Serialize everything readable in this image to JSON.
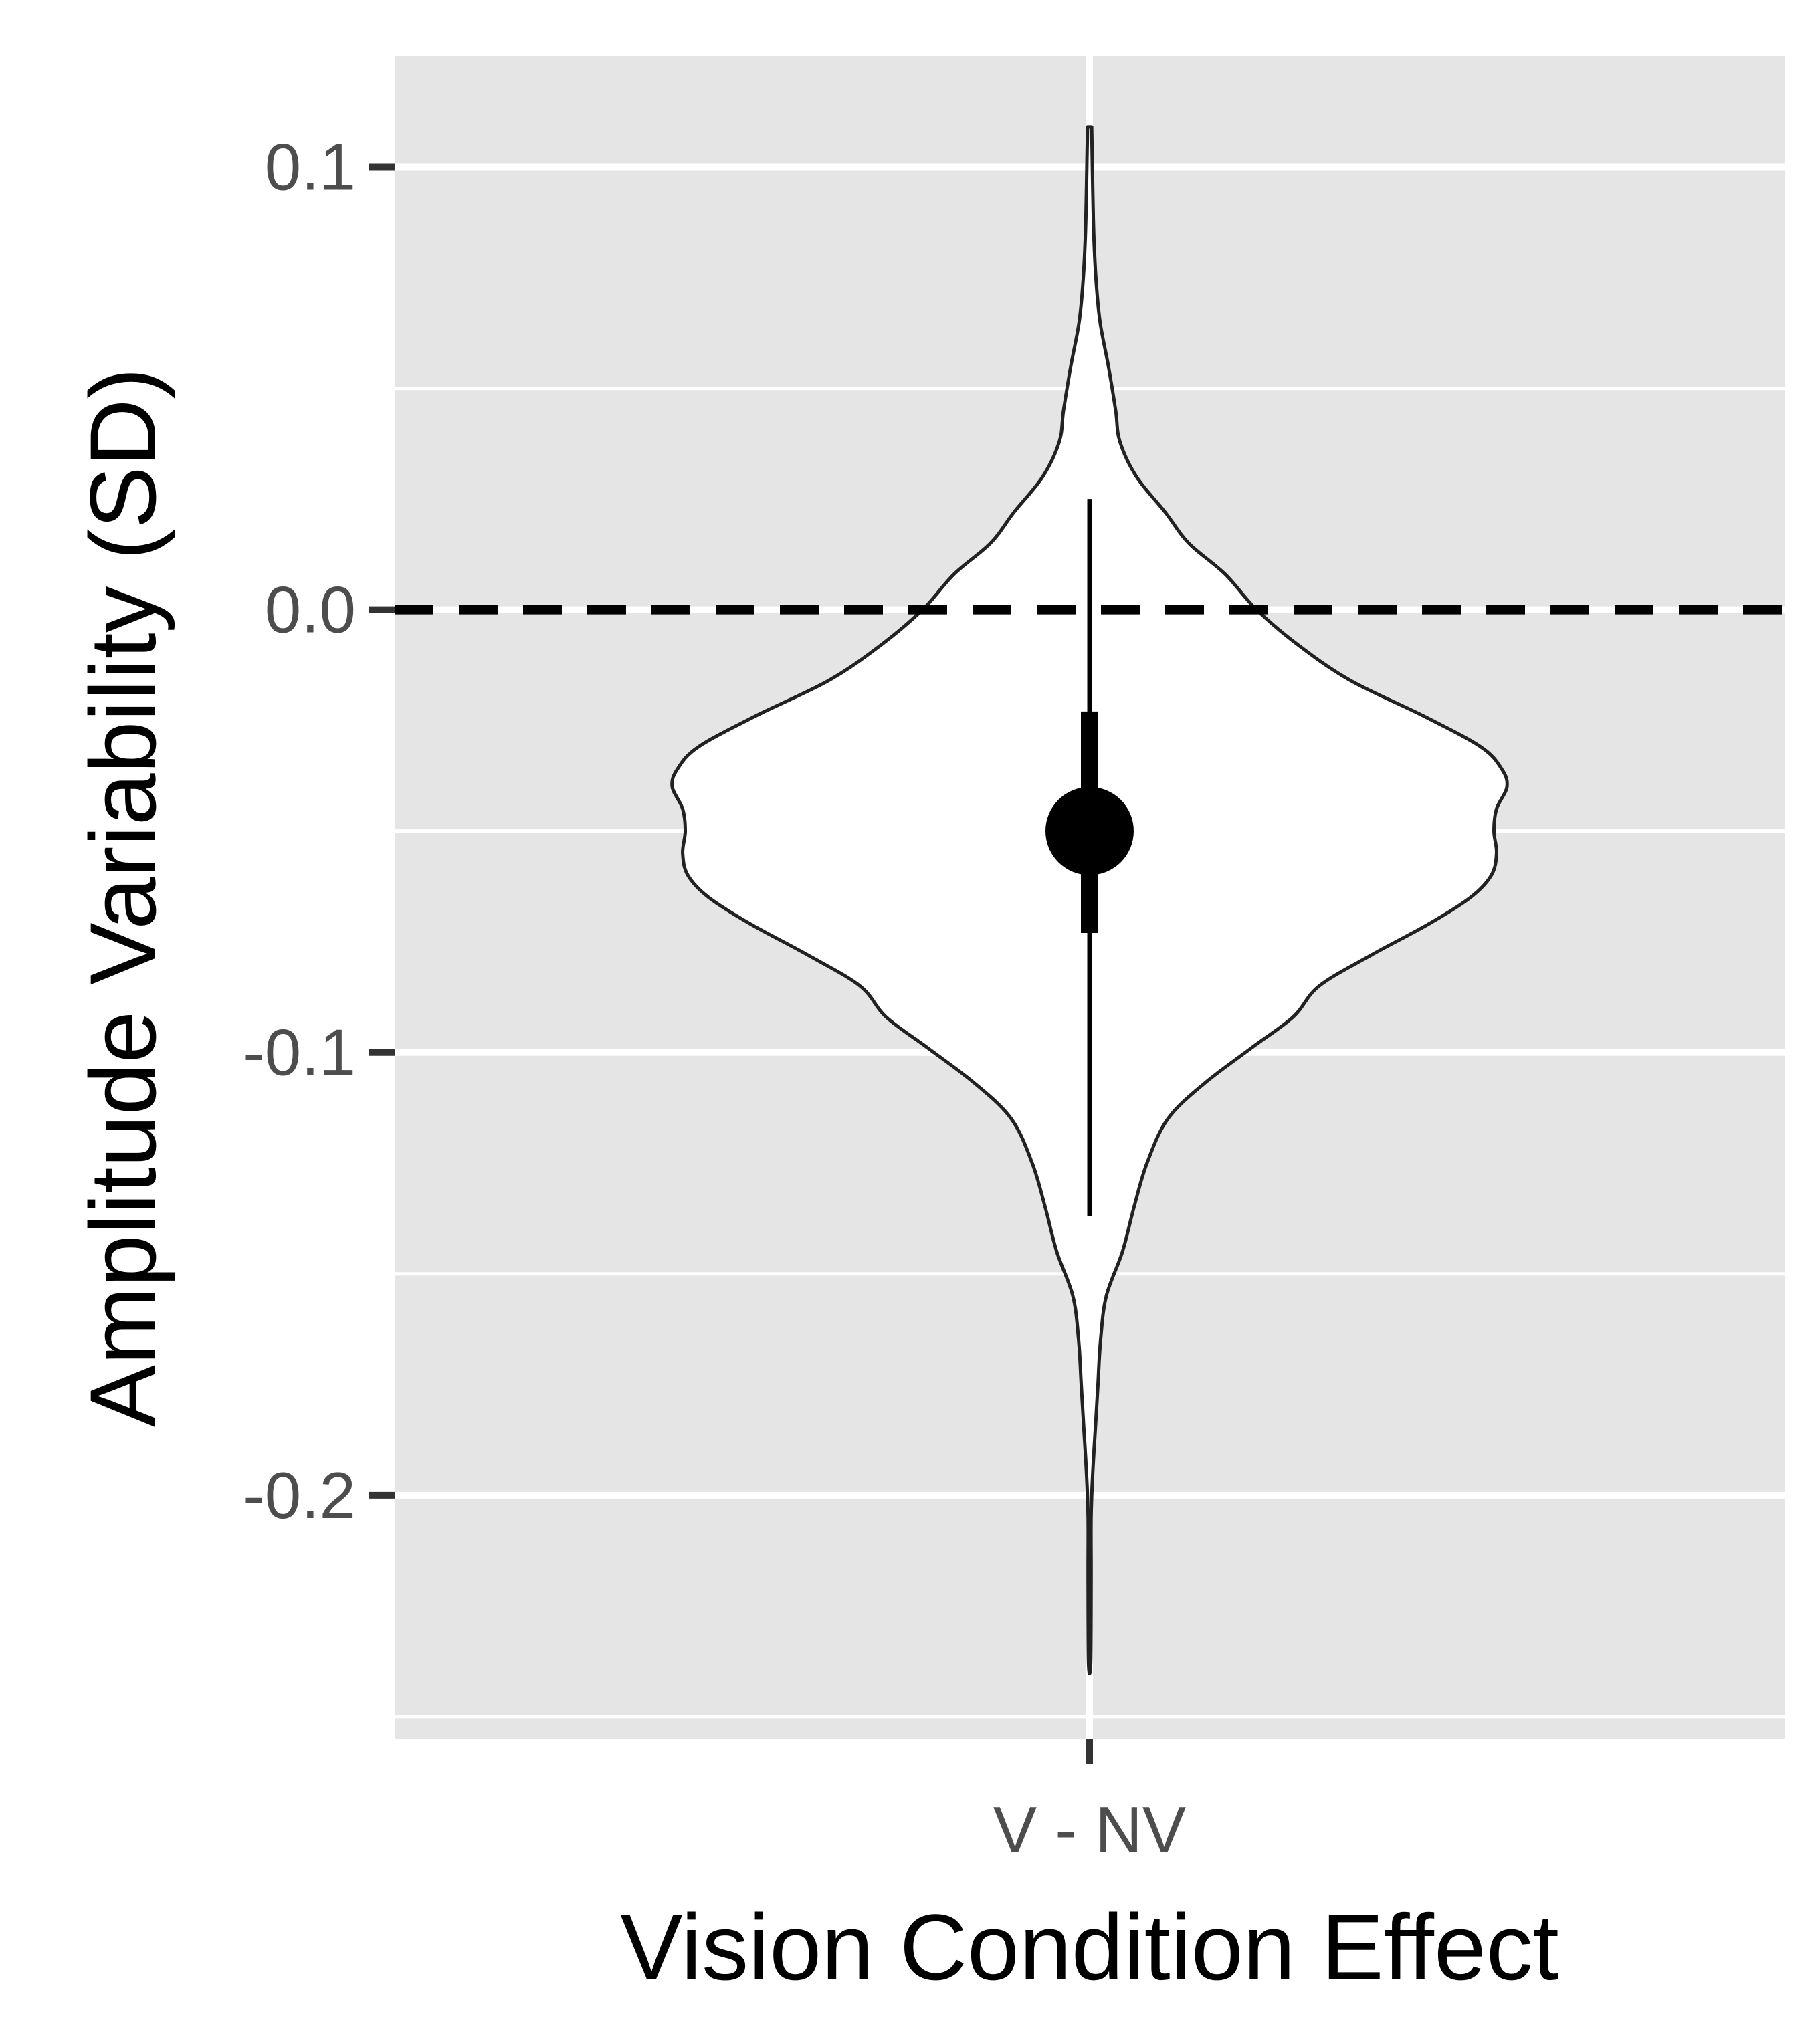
{
  "chart_data": {
    "type": "violin",
    "xlabel": "Vision Condition Effect",
    "ylabel": "Amplitude Variability (SD)",
    "categories": [
      "V - NV"
    ],
    "y_ticks": [
      {
        "value": 0.1,
        "label": "0.1"
      },
      {
        "value": 0.0,
        "label": "0.0"
      },
      {
        "value": -0.1,
        "label": "-0.1"
      },
      {
        "value": -0.2,
        "label": "-0.2"
      }
    ],
    "ylim": [
      -0.255,
      0.125
    ],
    "grid": true,
    "reference_line": {
      "y": 0.0,
      "style": "dashed",
      "color": "#000000"
    },
    "violin": {
      "category": "V - NV",
      "fill": "#ffffff",
      "outline": "#222222",
      "profile": [
        {
          "y": 0.109,
          "w": 0.004
        },
        {
          "y": 0.095,
          "w": 0.006
        },
        {
          "y": 0.085,
          "w": 0.008
        },
        {
          "y": 0.075,
          "w": 0.012
        },
        {
          "y": 0.065,
          "w": 0.02
        },
        {
          "y": 0.055,
          "w": 0.036
        },
        {
          "y": 0.045,
          "w": 0.05
        },
        {
          "y": 0.038,
          "w": 0.058
        },
        {
          "y": 0.03,
          "w": 0.09
        },
        {
          "y": 0.022,
          "w": 0.145
        },
        {
          "y": 0.015,
          "w": 0.19
        },
        {
          "y": 0.008,
          "w": 0.26
        },
        {
          "y": 0.0,
          "w": 0.32
        },
        {
          "y": -0.008,
          "w": 0.4
        },
        {
          "y": -0.016,
          "w": 0.5
        },
        {
          "y": -0.024,
          "w": 0.64
        },
        {
          "y": -0.031,
          "w": 0.75
        },
        {
          "y": -0.036,
          "w": 0.79
        },
        {
          "y": -0.04,
          "w": 0.8
        },
        {
          "y": -0.045,
          "w": 0.78
        },
        {
          "y": -0.05,
          "w": 0.775
        },
        {
          "y": -0.055,
          "w": 0.78
        },
        {
          "y": -0.06,
          "w": 0.77
        },
        {
          "y": -0.065,
          "w": 0.73
        },
        {
          "y": -0.071,
          "w": 0.65
        },
        {
          "y": -0.078,
          "w": 0.54
        },
        {
          "y": -0.085,
          "w": 0.44
        },
        {
          "y": -0.092,
          "w": 0.39
        },
        {
          "y": -0.099,
          "w": 0.31
        },
        {
          "y": -0.107,
          "w": 0.22
        },
        {
          "y": -0.115,
          "w": 0.15
        },
        {
          "y": -0.125,
          "w": 0.11
        },
        {
          "y": -0.135,
          "w": 0.085
        },
        {
          "y": -0.145,
          "w": 0.063
        },
        {
          "y": -0.155,
          "w": 0.032
        },
        {
          "y": -0.165,
          "w": 0.021
        },
        {
          "y": -0.175,
          "w": 0.016
        },
        {
          "y": -0.185,
          "w": 0.011
        },
        {
          "y": -0.195,
          "w": 0.006
        },
        {
          "y": -0.205,
          "w": 0.003
        },
        {
          "y": -0.22,
          "w": 0.003
        },
        {
          "y": -0.238,
          "w": 0.002
        }
      ]
    },
    "summary": {
      "point": -0.05,
      "inner_interval": [
        -0.073,
        -0.023
      ],
      "outer_interval": [
        -0.137,
        0.025
      ]
    }
  }
}
